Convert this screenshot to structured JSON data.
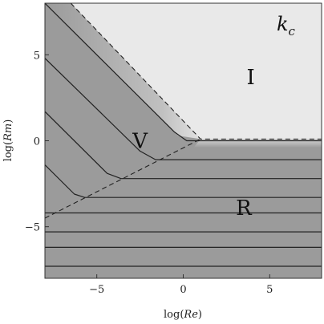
{
  "chart_data": {
    "type": "contour",
    "title": "k",
    "title_subscript": "c",
    "xlabel_prefix": "log(",
    "xlabel_var": "Re",
    "xlabel_suffix": ")",
    "ylabel_prefix": "log(",
    "ylabel_var": "Rm",
    "ylabel_suffix": ")",
    "xlim": [
      -8,
      8
    ],
    "ylim": [
      -8,
      8
    ],
    "x_ticks": [
      {
        "value": -5,
        "label": "−5"
      },
      {
        "value": 0,
        "label": "0"
      },
      {
        "value": 5,
        "label": "5"
      }
    ],
    "y_ticks": [
      {
        "value": -5,
        "label": "−5"
      },
      {
        "value": 0,
        "label": "0"
      },
      {
        "value": 5,
        "label": "5"
      }
    ],
    "regions": [
      {
        "label": "I",
        "x": 3.9,
        "y": 3.7
      },
      {
        "label": "V",
        "x": -2.5,
        "y": 0.0
      },
      {
        "label": "R",
        "x": 3.5,
        "y": -3.9
      }
    ],
    "boundaries": [
      {
        "name": "I-boundary",
        "style": "dashed",
        "points": [
          [
            -6.5,
            8
          ],
          [
            1.0,
            0.1
          ],
          [
            8,
            0.1
          ]
        ]
      },
      {
        "name": "V-R-boundary",
        "style": "dashed",
        "points": [
          [
            -8,
            -4.5
          ],
          [
            1.0,
            0.1
          ]
        ]
      }
    ],
    "contours": [
      {
        "points": [
          [
            -8,
            8
          ],
          [
            -0.5,
            0.5
          ],
          [
            0.2,
            0.0
          ],
          [
            8,
            0.0
          ]
        ]
      },
      {
        "points": [
          [
            -8,
            4.8
          ],
          [
            -2.5,
            -0.6
          ],
          [
            -1.6,
            -1.1
          ],
          [
            8,
            -1.1
          ]
        ]
      },
      {
        "points": [
          [
            -8,
            1.7
          ],
          [
            -4.4,
            -1.9
          ],
          [
            -3.6,
            -2.2
          ],
          [
            8,
            -2.2
          ]
        ]
      },
      {
        "points": [
          [
            -8,
            -1.4
          ],
          [
            -6.3,
            -3.1
          ],
          [
            -5.7,
            -3.3
          ],
          [
            8,
            -3.3
          ]
        ]
      },
      {
        "points": [
          [
            -8,
            -4.2
          ],
          [
            8,
            -4.2
          ]
        ]
      },
      {
        "points": [
          [
            -8,
            -5.3
          ],
          [
            8,
            -5.3
          ]
        ]
      },
      {
        "points": [
          [
            -8,
            -6.2
          ],
          [
            8,
            -6.2
          ]
        ]
      },
      {
        "points": [
          [
            -8,
            -7.3
          ],
          [
            8,
            -7.3
          ]
        ]
      }
    ],
    "colors": {
      "region_I": "#e9e9e9",
      "region_shaded": "#9b9b9b",
      "contour": "#222222"
    }
  }
}
